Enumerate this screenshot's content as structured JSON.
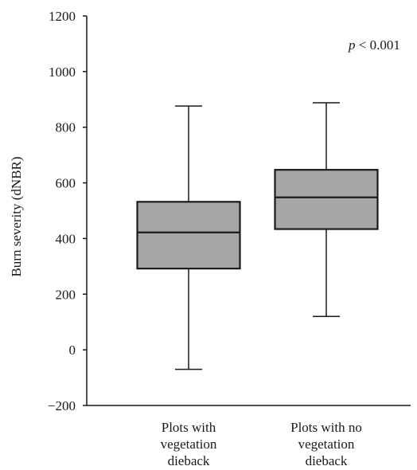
{
  "chart_data": {
    "type": "box",
    "title": "",
    "xlabel": "",
    "ylabel": "Burn severity (dNBR)",
    "ylim": [
      -200,
      1200
    ],
    "y_ticks": [
      -200,
      0,
      200,
      400,
      600,
      800,
      1000,
      1200
    ],
    "y_tick_labels": [
      "−200",
      "0",
      "200",
      "400",
      "600",
      "800",
      "1000",
      "1200"
    ],
    "categories": [
      [
        "Plots with",
        "vegetation",
        "dieback"
      ],
      [
        "Plots with no",
        "vegetation",
        "dieback"
      ]
    ],
    "boxes": [
      {
        "min": -70,
        "q1": 292,
        "median": 422,
        "q3": 532,
        "max": 876
      },
      {
        "min": 120,
        "q1": 434,
        "median": 548,
        "q3": 647,
        "max": 888
      }
    ],
    "annotation": {
      "prefix": "p",
      "text": " < 0.001"
    },
    "grid": false,
    "legend": "none",
    "colors": {
      "box_fill": "#a6a6a6",
      "stroke": "#1a1a1a"
    }
  }
}
